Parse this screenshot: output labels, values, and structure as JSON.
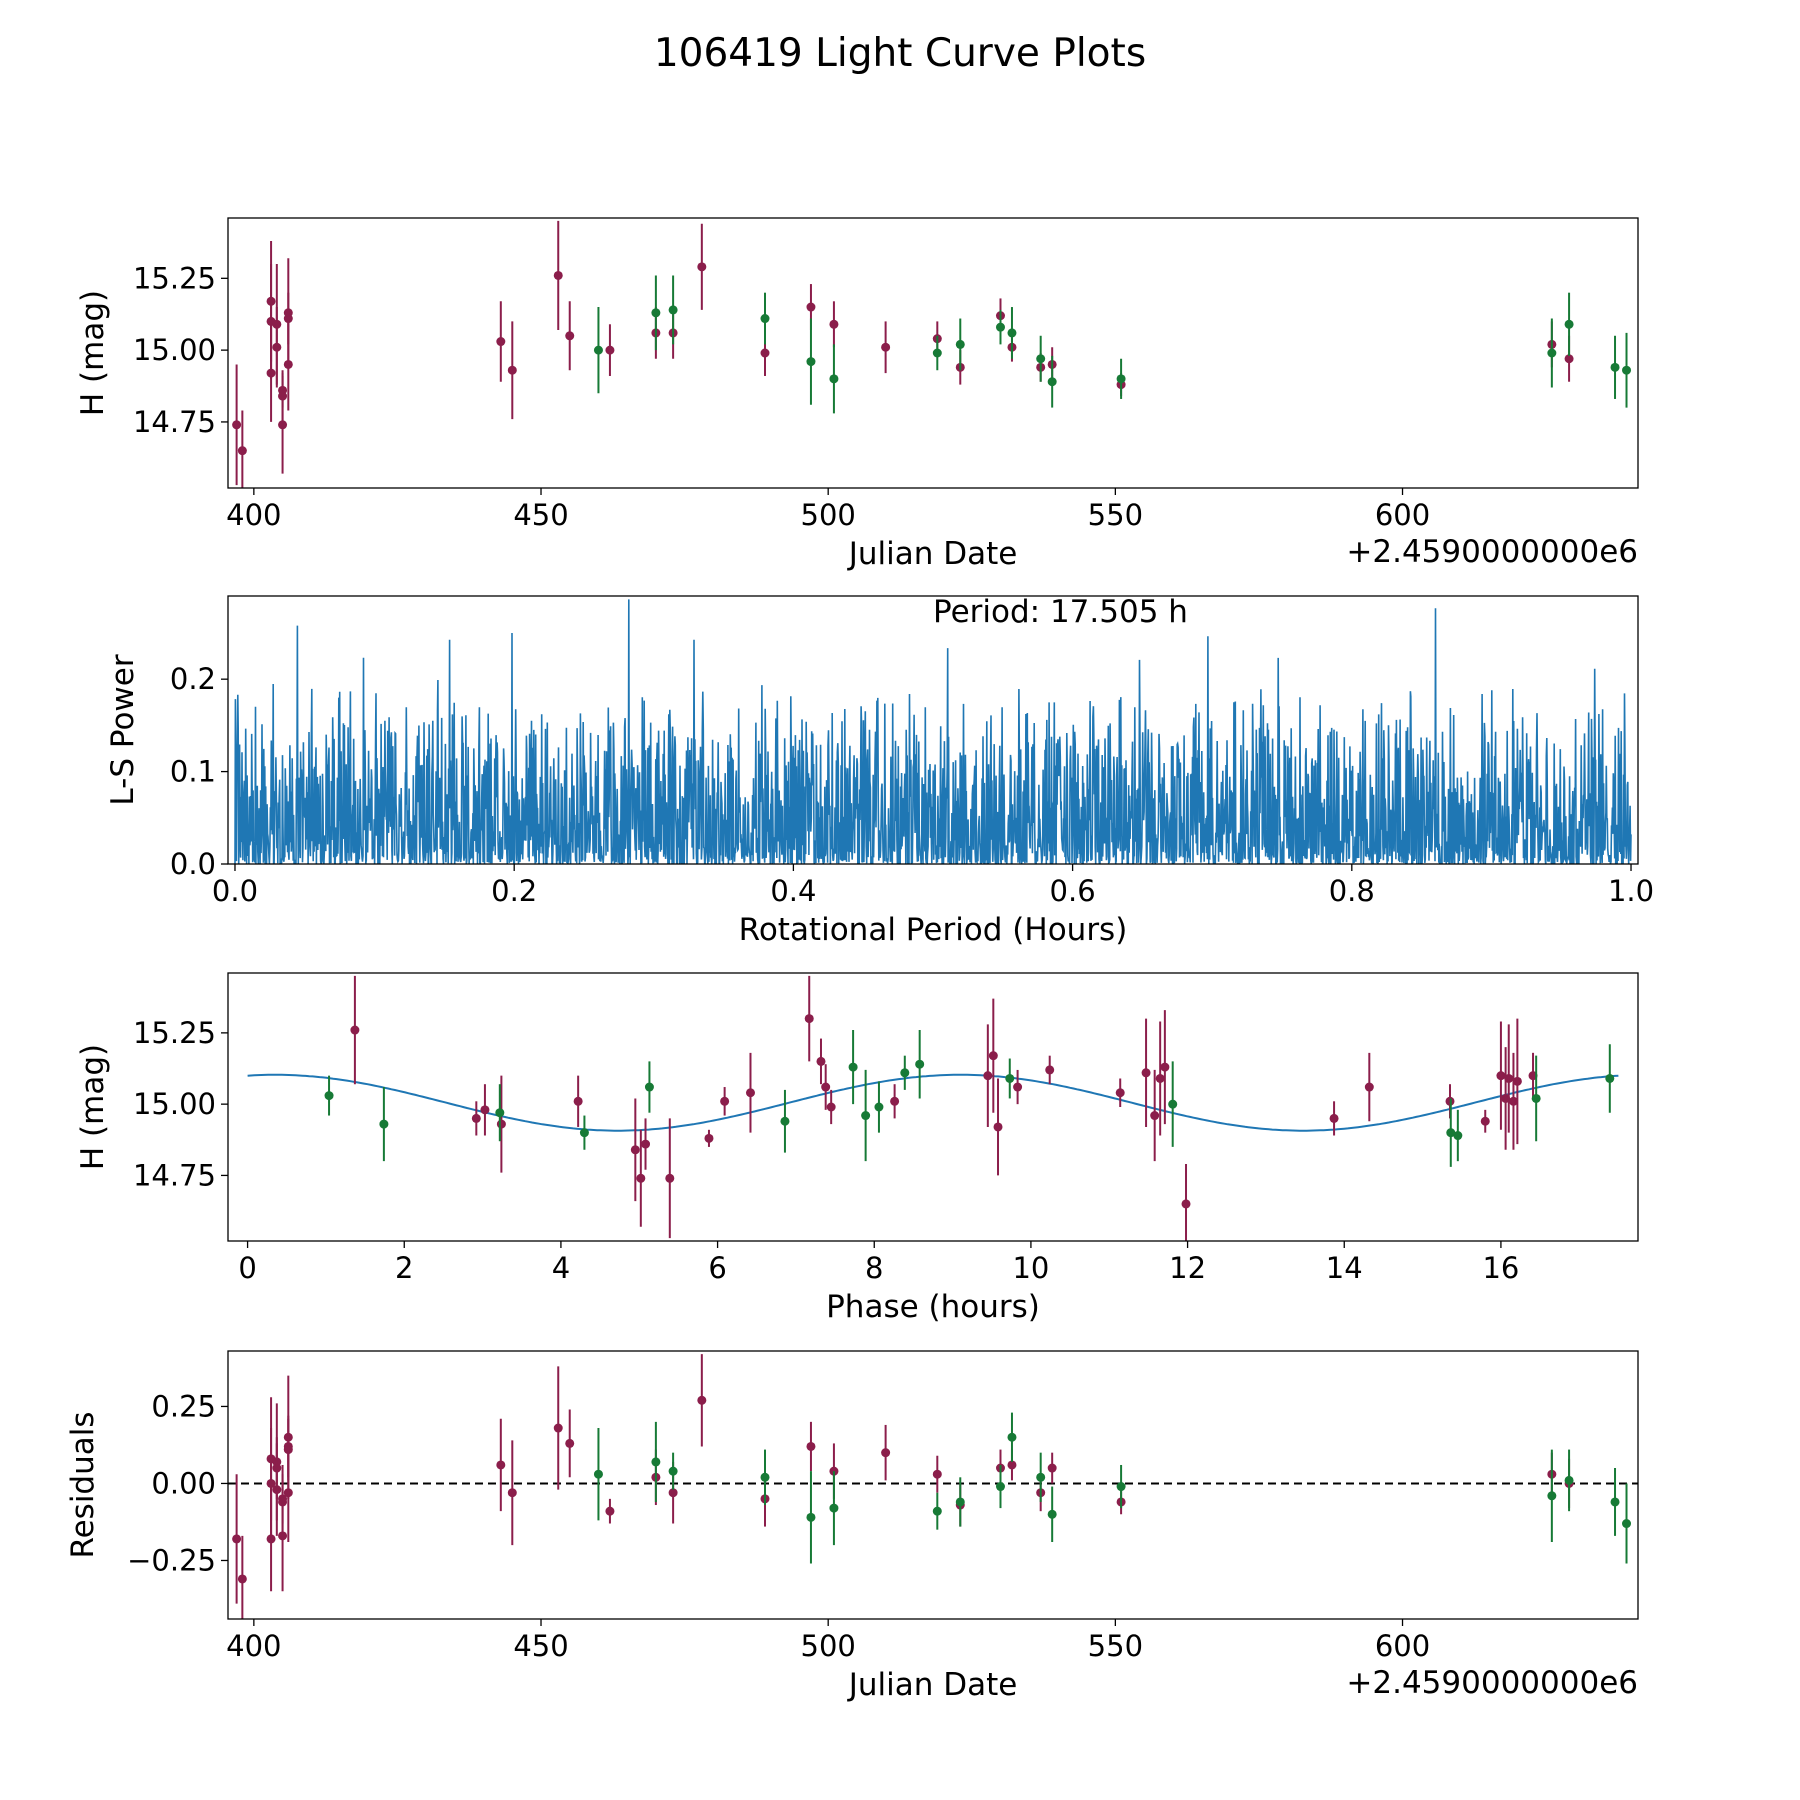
{
  "title": "106419 Light Curve Plots",
  "colors": {
    "red": "#8b1e4b",
    "green": "#177a36",
    "line": "#1f77b4",
    "axis": "#000000"
  },
  "chart_data": [
    {
      "type": "scatter",
      "name": "light-curve",
      "xlabel": "Julian Date",
      "ylabel": "H (mag)",
      "offset_label": "+2.4590000000e6",
      "xlim": [
        395.5,
        641
      ],
      "ylim": [
        14.52,
        15.46
      ],
      "xticks": [
        400,
        450,
        500,
        550,
        600
      ],
      "yticks": [
        14.75,
        15.0,
        15.25
      ],
      "xtick_labels": [
        "400",
        "450",
        "500",
        "550",
        "600"
      ],
      "ytick_labels": [
        "14.75",
        "15.00",
        "15.25"
      ],
      "series": [
        {
          "name": "red",
          "color": "#8b1e4b",
          "points": [
            [
              397,
              14.74,
              0.21
            ],
            [
              398,
              14.65,
              0.14
            ],
            [
              403,
              15.17,
              0.21
            ],
            [
              403,
              15.1,
              0.2
            ],
            [
              403,
              14.92,
              0.17
            ],
            [
              404,
              15.09,
              0.21
            ],
            [
              404,
              15.01,
              0.14
            ],
            [
              405,
              14.86,
              0.06
            ],
            [
              405,
              14.84,
              0.09
            ],
            [
              405,
              14.74,
              0.17
            ],
            [
              406,
              15.13,
              0.19
            ],
            [
              406,
              15.11,
              0.09
            ],
            [
              406,
              14.95,
              0.16
            ],
            [
              443,
              15.03,
              0.14
            ],
            [
              445,
              14.93,
              0.17
            ],
            [
              453,
              15.26,
              0.19
            ],
            [
              455,
              15.05,
              0.12
            ],
            [
              462,
              15.0,
              0.09
            ],
            [
              470,
              15.06,
              0.09
            ],
            [
              473,
              15.06,
              0.09
            ],
            [
              478,
              15.29,
              0.15
            ],
            [
              489,
              14.99,
              0.08
            ],
            [
              497,
              15.15,
              0.08
            ],
            [
              501,
              15.09,
              0.08
            ],
            [
              510,
              15.01,
              0.09
            ],
            [
              519,
              15.04,
              0.06
            ],
            [
              523,
              14.94,
              0.06
            ],
            [
              530,
              15.12,
              0.06
            ],
            [
              532,
              15.01,
              0.05
            ],
            [
              537,
              14.94,
              0.05
            ],
            [
              539,
              14.95,
              0.06
            ],
            [
              551,
              14.88,
              0.04
            ],
            [
              626,
              15.02,
              0.08
            ],
            [
              629,
              14.97,
              0.08
            ]
          ]
        },
        {
          "name": "green",
          "color": "#177a36",
          "points": [
            [
              460,
              15.0,
              0.15
            ],
            [
              470,
              15.13,
              0.13
            ],
            [
              473,
              15.14,
              0.12
            ],
            [
              489,
              15.11,
              0.09
            ],
            [
              497,
              14.96,
              0.15
            ],
            [
              501,
              14.9,
              0.12
            ],
            [
              519,
              14.99,
              0.06
            ],
            [
              523,
              15.02,
              0.09
            ],
            [
              530,
              15.08,
              0.06
            ],
            [
              532,
              15.06,
              0.09
            ],
            [
              537,
              14.97,
              0.08
            ],
            [
              539,
              14.89,
              0.09
            ],
            [
              551,
              14.9,
              0.07
            ],
            [
              626,
              14.99,
              0.12
            ],
            [
              629,
              15.09,
              0.11
            ],
            [
              637,
              14.94,
              0.11
            ],
            [
              639,
              14.93,
              0.13
            ]
          ]
        }
      ]
    },
    {
      "type": "line",
      "name": "periodogram",
      "xlabel": "Rotational Period (Hours)",
      "ylabel": "L-S Power",
      "annotation": "Period: 17.505 h",
      "xlim": [
        -0.005,
        1.005
      ],
      "ylim": [
        0.0,
        0.29
      ],
      "xticks": [
        0.0,
        0.2,
        0.4,
        0.6,
        0.8,
        1.0
      ],
      "yticks": [
        0.0,
        0.1,
        0.2
      ],
      "xtick_labels": [
        "0.0",
        "0.2",
        "0.4",
        "0.6",
        "0.8",
        "1.0"
      ],
      "ytick_labels": [
        "0.0",
        "0.1",
        "0.2"
      ],
      "series": [
        {
          "name": "L-S power",
          "color": "#1f77b4",
          "x_range": [
            0.0,
            1.0
          ],
          "n_samples": 3000,
          "typical_max": 0.2,
          "peak_max": 0.29
        }
      ]
    },
    {
      "type": "scatter",
      "name": "phase-folded",
      "xlabel": "Phase (hours)",
      "ylabel": "H (mag)",
      "xlim": [
        -0.25,
        17.75
      ],
      "ylim": [
        14.52,
        15.46
      ],
      "xticks": [
        0,
        2,
        4,
        6,
        8,
        10,
        12,
        14,
        16
      ],
      "yticks": [
        14.75,
        15.0,
        15.25
      ],
      "xtick_labels": [
        "0",
        "2",
        "4",
        "6",
        "8",
        "10",
        "12",
        "14",
        "16"
      ],
      "ytick_labels": [
        "14.75",
        "15.00",
        "15.25"
      ],
      "fit": {
        "color": "#1f77b4",
        "mean": 15.005,
        "amplitude": 0.098,
        "period": 8.75,
        "phase_of_max": 0.35,
        "x_range": [
          0,
          17.5
        ]
      },
      "series": [
        {
          "name": "red",
          "color": "#8b1e4b",
          "points": [
            [
              1.37,
              15.26,
              0.19
            ],
            [
              2.92,
              14.95,
              0.06
            ],
            [
              3.03,
              14.98,
              0.09
            ],
            [
              3.24,
              14.93,
              0.17
            ],
            [
              4.22,
              15.01,
              0.09
            ],
            [
              4.95,
              14.84,
              0.18
            ],
            [
              5.02,
              14.74,
              0.17
            ],
            [
              5.08,
              14.86,
              0.09
            ],
            [
              5.39,
              14.74,
              0.21
            ],
            [
              5.89,
              14.88,
              0.03
            ],
            [
              6.09,
              15.01,
              0.05
            ],
            [
              6.42,
              15.04,
              0.14
            ],
            [
              7.17,
              15.3,
              0.15
            ],
            [
              7.32,
              15.15,
              0.08
            ],
            [
              7.38,
              15.06,
              0.08
            ],
            [
              7.45,
              14.99,
              0.06
            ],
            [
              8.26,
              15.01,
              0.06
            ],
            [
              9.45,
              15.1,
              0.18
            ],
            [
              9.52,
              15.17,
              0.2
            ],
            [
              9.58,
              14.92,
              0.17
            ],
            [
              9.83,
              15.06,
              0.06
            ],
            [
              10.24,
              15.12,
              0.05
            ],
            [
              11.14,
              15.04,
              0.05
            ],
            [
              11.47,
              15.11,
              0.19
            ],
            [
              11.58,
              14.96,
              0.16
            ],
            [
              11.65,
              15.09,
              0.2
            ],
            [
              11.71,
              15.13,
              0.2
            ],
            [
              11.98,
              14.65,
              0.14
            ],
            [
              13.87,
              14.95,
              0.06
            ],
            [
              14.32,
              15.06,
              0.12
            ],
            [
              15.35,
              15.01,
              0.06
            ],
            [
              15.8,
              14.94,
              0.04
            ],
            [
              16.0,
              15.1,
              0.19
            ],
            [
              16.06,
              15.02,
              0.18
            ],
            [
              16.1,
              15.09,
              0.19
            ],
            [
              16.16,
              15.01,
              0.17
            ],
            [
              16.21,
              15.08,
              0.22
            ],
            [
              16.41,
              15.1,
              0.08
            ]
          ]
        },
        {
          "name": "green",
          "color": "#177a36",
          "points": [
            [
              1.04,
              15.03,
              0.07
            ],
            [
              1.74,
              14.93,
              0.13
            ],
            [
              3.22,
              14.97,
              0.1
            ],
            [
              4.3,
              14.9,
              0.06
            ],
            [
              5.13,
              15.06,
              0.09
            ],
            [
              6.86,
              14.94,
              0.11
            ],
            [
              7.73,
              15.13,
              0.13
            ],
            [
              7.89,
              14.96,
              0.16
            ],
            [
              8.06,
              14.99,
              0.09
            ],
            [
              8.39,
              15.11,
              0.06
            ],
            [
              8.58,
              15.14,
              0.12
            ],
            [
              9.73,
              15.09,
              0.07
            ],
            [
              11.81,
              15.0,
              0.15
            ],
            [
              15.36,
              14.9,
              0.12
            ],
            [
              15.45,
              14.89,
              0.09
            ],
            [
              16.45,
              15.02,
              0.15
            ],
            [
              17.39,
              15.09,
              0.12
            ]
          ]
        }
      ]
    },
    {
      "type": "scatter",
      "name": "residuals",
      "xlabel": "Julian Date",
      "ylabel": "Residuals",
      "offset_label": "+2.4590000000e6",
      "xlim": [
        395.5,
        641
      ],
      "ylim": [
        -0.44,
        0.43
      ],
      "xticks": [
        400,
        450,
        500,
        550,
        600
      ],
      "yticks": [
        -0.25,
        0.0,
        0.25
      ],
      "xtick_labels": [
        "400",
        "450",
        "500",
        "550",
        "600"
      ],
      "ytick_labels": [
        "−0.25",
        "0.00",
        "0.25"
      ],
      "zero_line": {
        "value": 0.0,
        "style": "dashed",
        "color": "#000000"
      },
      "series": [
        {
          "name": "red",
          "color": "#8b1e4b",
          "points": [
            [
              397,
              -0.18,
              0.21
            ],
            [
              398,
              -0.31,
              0.14
            ],
            [
              403,
              0.08,
              0.2
            ],
            [
              403,
              0.0,
              0.18
            ],
            [
              403,
              -0.18,
              0.17
            ],
            [
              404,
              0.07,
              0.19
            ],
            [
              404,
              0.05,
              0.1
            ],
            [
              404,
              -0.02,
              0.15
            ],
            [
              405,
              -0.05,
              0.08
            ],
            [
              405,
              -0.06,
              0.12
            ],
            [
              405,
              -0.17,
              0.18
            ],
            [
              406,
              0.15,
              0.2
            ],
            [
              406,
              0.12,
              0.1
            ],
            [
              406,
              0.11,
              0.1
            ],
            [
              406,
              -0.03,
              0.16
            ],
            [
              443,
              0.06,
              0.15
            ],
            [
              445,
              -0.03,
              0.17
            ],
            [
              453,
              0.18,
              0.2
            ],
            [
              455,
              0.13,
              0.11
            ],
            [
              462,
              -0.09,
              0.04
            ],
            [
              470,
              0.02,
              0.09
            ],
            [
              473,
              -0.03,
              0.1
            ],
            [
              478,
              0.27,
              0.15
            ],
            [
              489,
              -0.05,
              0.09
            ],
            [
              497,
              0.12,
              0.08
            ],
            [
              501,
              0.04,
              0.09
            ],
            [
              510,
              0.1,
              0.09
            ],
            [
              519,
              0.03,
              0.06
            ],
            [
              523,
              -0.07,
              0.07
            ],
            [
              530,
              0.05,
              0.06
            ],
            [
              532,
              0.06,
              0.05
            ],
            [
              537,
              -0.03,
              0.06
            ],
            [
              539,
              0.05,
              0.05
            ],
            [
              551,
              -0.06,
              0.04
            ],
            [
              626,
              0.03,
              0.07
            ],
            [
              629,
              0.0,
              0.08
            ]
          ]
        },
        {
          "name": "green",
          "color": "#177a36",
          "points": [
            [
              460,
              0.03,
              0.15
            ],
            [
              470,
              0.07,
              0.13
            ],
            [
              473,
              0.04,
              0.06
            ],
            [
              489,
              0.02,
              0.09
            ],
            [
              497,
              -0.11,
              0.15
            ],
            [
              501,
              -0.08,
              0.12
            ],
            [
              519,
              -0.09,
              0.06
            ],
            [
              523,
              -0.06,
              0.08
            ],
            [
              530,
              -0.01,
              0.07
            ],
            [
              532,
              0.15,
              0.08
            ],
            [
              537,
              0.02,
              0.08
            ],
            [
              539,
              -0.1,
              0.09
            ],
            [
              551,
              -0.01,
              0.07
            ],
            [
              626,
              -0.04,
              0.15
            ],
            [
              629,
              0.01,
              0.1
            ],
            [
              637,
              -0.06,
              0.11
            ],
            [
              639,
              -0.13,
              0.13
            ]
          ]
        }
      ]
    }
  ]
}
